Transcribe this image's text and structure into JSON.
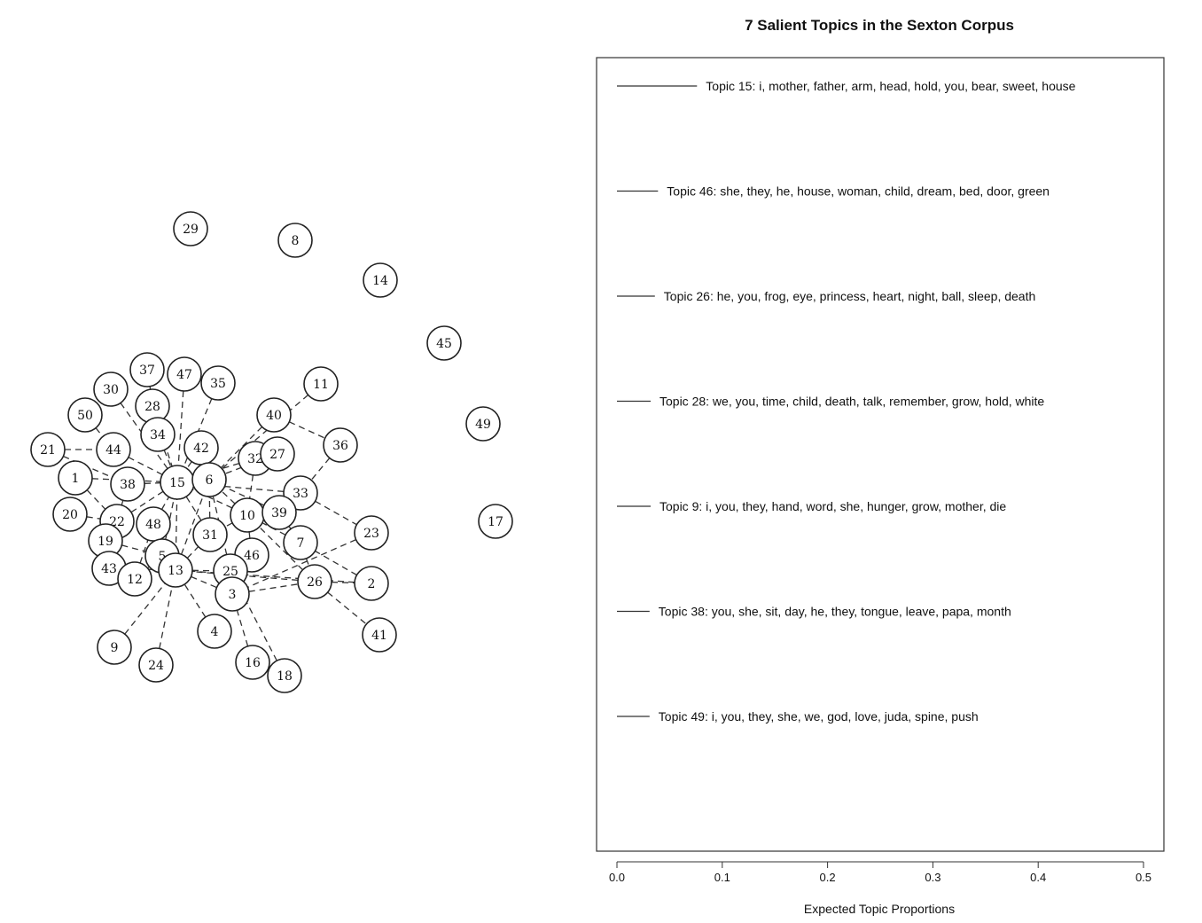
{
  "chart_data": [
    {
      "type": "network",
      "title": "",
      "nodes": [
        "29",
        "8",
        "14",
        "45",
        "49",
        "17",
        "37",
        "47",
        "35",
        "11",
        "30",
        "28",
        "50",
        "34",
        "40",
        "36",
        "21",
        "44",
        "42",
        "32",
        "27",
        "1",
        "38",
        "15",
        "6",
        "33",
        "20",
        "22",
        "48",
        "10",
        "39",
        "23",
        "19",
        "31",
        "7",
        "5",
        "46",
        "43",
        "12",
        "13",
        "25",
        "26",
        "2",
        "3",
        "41",
        "4",
        "9",
        "24",
        "16",
        "18"
      ],
      "edges": [
        [
          "11",
          "6"
        ],
        [
          "40",
          "6"
        ],
        [
          "40",
          "36"
        ],
        [
          "36",
          "33"
        ],
        [
          "33",
          "23"
        ],
        [
          "33",
          "15"
        ],
        [
          "32",
          "15"
        ],
        [
          "27",
          "6"
        ],
        [
          "42",
          "15"
        ],
        [
          "35",
          "15"
        ],
        [
          "47",
          "15"
        ],
        [
          "37",
          "34"
        ],
        [
          "28",
          "15"
        ],
        [
          "30",
          "15"
        ],
        [
          "50",
          "44"
        ],
        [
          "34",
          "15"
        ],
        [
          "21",
          "44"
        ],
        [
          "21",
          "38"
        ],
        [
          "44",
          "15"
        ],
        [
          "1",
          "15"
        ],
        [
          "1",
          "22"
        ],
        [
          "38",
          "15"
        ],
        [
          "20",
          "22"
        ],
        [
          "22",
          "15"
        ],
        [
          "48",
          "15"
        ],
        [
          "19",
          "22"
        ],
        [
          "19",
          "5"
        ],
        [
          "43",
          "22"
        ],
        [
          "43",
          "13"
        ],
        [
          "12",
          "5"
        ],
        [
          "12",
          "48"
        ],
        [
          "5",
          "13"
        ],
        [
          "5",
          "15"
        ],
        [
          "13",
          "15"
        ],
        [
          "13",
          "6"
        ],
        [
          "13",
          "31"
        ],
        [
          "13",
          "25"
        ],
        [
          "13",
          "3"
        ],
        [
          "31",
          "6"
        ],
        [
          "31",
          "15"
        ],
        [
          "10",
          "6"
        ],
        [
          "10",
          "15"
        ],
        [
          "10",
          "31"
        ],
        [
          "39",
          "10"
        ],
        [
          "39",
          "6"
        ],
        [
          "7",
          "10"
        ],
        [
          "7",
          "39"
        ],
        [
          "7",
          "26"
        ],
        [
          "46",
          "10"
        ],
        [
          "25",
          "46"
        ],
        [
          "25",
          "6"
        ],
        [
          "3",
          "46"
        ],
        [
          "3",
          "26"
        ],
        [
          "26",
          "10"
        ],
        [
          "26",
          "2"
        ],
        [
          "26",
          "13"
        ],
        [
          "26",
          "41"
        ],
        [
          "2",
          "7"
        ],
        [
          "2",
          "13"
        ],
        [
          "23",
          "3"
        ],
        [
          "4",
          "13"
        ],
        [
          "9",
          "13"
        ],
        [
          "24",
          "13"
        ],
        [
          "16",
          "3"
        ],
        [
          "18",
          "25"
        ],
        [
          "32",
          "10"
        ],
        [
          "48",
          "13"
        ],
        [
          "38",
          "22"
        ]
      ]
    },
    {
      "type": "bar",
      "title": "7 Salient Topics in the Sexton Corpus",
      "xlabel": "Expected Topic Proportions",
      "ylabel": "",
      "xlim": [
        0,
        0.5
      ],
      "xticks": [
        "0.0",
        "0.1",
        "0.2",
        "0.3",
        "0.4",
        "0.5"
      ],
      "tick_values": [
        0.0,
        0.1,
        0.2,
        0.3,
        0.4,
        0.5
      ],
      "categories": [
        "Topic 15: i, mother, father, arm, head, hold, you, bear, sweet, house",
        "Topic 46: she, they, he, house, woman, child, dream, bed, door, green",
        "Topic 26: he, you, frog, eye, princess, heart, night, ball, sleep, death",
        "Topic 28: we, you, time, child, death, talk, remember, grow, hold, white",
        "Topic 9: i, you, they, hand, word, she, hunger, grow, mother, die",
        "Topic 38: you, she, sit, day, he, they, tongue, leave, papa, month",
        "Topic 49: i, you, they, she, we, god, love, juda, spine, push"
      ],
      "values": [
        0.076,
        0.039,
        0.036,
        0.032,
        0.032,
        0.031,
        0.031
      ]
    }
  ]
}
